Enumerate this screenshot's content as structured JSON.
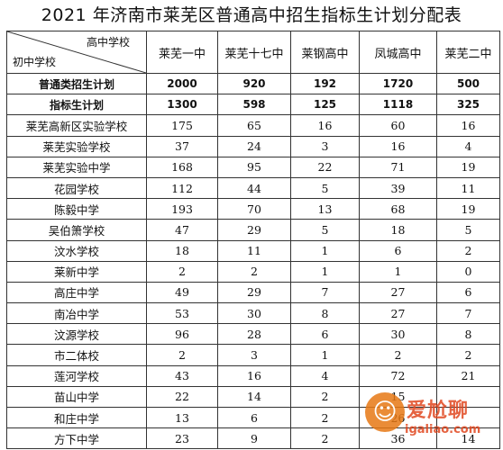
{
  "title": "2021 年济南市莱芜区普通高中招生指标生计划分配表",
  "header": {
    "corner_top": "高中学校",
    "corner_bottom": "初中学校",
    "columns": [
      "莱芜一中",
      "莱芜十七中",
      "莱钢高中",
      "凤城高中",
      "莱芜二中"
    ]
  },
  "summary_rows": [
    {
      "label": "普通类招生计划",
      "values": [
        "2000",
        "920",
        "192",
        "1720",
        "500"
      ]
    },
    {
      "label": "指标生计划",
      "values": [
        "1300",
        "598",
        "125",
        "1118",
        "325"
      ]
    }
  ],
  "rows": [
    {
      "school": "莱芜高新区实验学校",
      "values": [
        "175",
        "65",
        "16",
        "60",
        "16"
      ]
    },
    {
      "school": "莱芜实验学校",
      "values": [
        "37",
        "24",
        "3",
        "16",
        "4"
      ]
    },
    {
      "school": "莱芜实验中学",
      "values": [
        "168",
        "95",
        "22",
        "71",
        "19"
      ]
    },
    {
      "school": "花园学校",
      "values": [
        "112",
        "44",
        "5",
        "39",
        "11"
      ]
    },
    {
      "school": "陈毅中学",
      "values": [
        "193",
        "70",
        "13",
        "68",
        "19"
      ]
    },
    {
      "school": "吴伯箫学校",
      "values": [
        "47",
        "29",
        "5",
        "18",
        "5"
      ]
    },
    {
      "school": "汶水学校",
      "values": [
        "18",
        "11",
        "1",
        "6",
        "2"
      ]
    },
    {
      "school": "莱新中学",
      "values": [
        "2",
        "2",
        "1",
        "1",
        "0"
      ]
    },
    {
      "school": "高庄中学",
      "values": [
        "49",
        "29",
        "7",
        "27",
        "6"
      ]
    },
    {
      "school": "南冶中学",
      "values": [
        "53",
        "30",
        "8",
        "27",
        "7"
      ]
    },
    {
      "school": "汶源学校",
      "values": [
        "96",
        "28",
        "6",
        "30",
        "8"
      ]
    },
    {
      "school": "市二体校",
      "values": [
        "2",
        "3",
        "1",
        "2",
        "2"
      ]
    },
    {
      "school": "莲河学校",
      "values": [
        "43",
        "16",
        "4",
        "72",
        "21"
      ]
    },
    {
      "school": "苗山中学",
      "values": [
        "22",
        "14",
        "2",
        "15",
        ""
      ]
    },
    {
      "school": "和庄中学",
      "values": [
        "13",
        "6",
        "2",
        "26",
        ""
      ]
    },
    {
      "school": "方下中学",
      "values": [
        "23",
        "9",
        "2",
        "36",
        "14"
      ]
    }
  ],
  "watermark": {
    "name": "爱尬聊",
    "url": "igaliao.com",
    "icon": "aigaliao-logo-icon"
  }
}
